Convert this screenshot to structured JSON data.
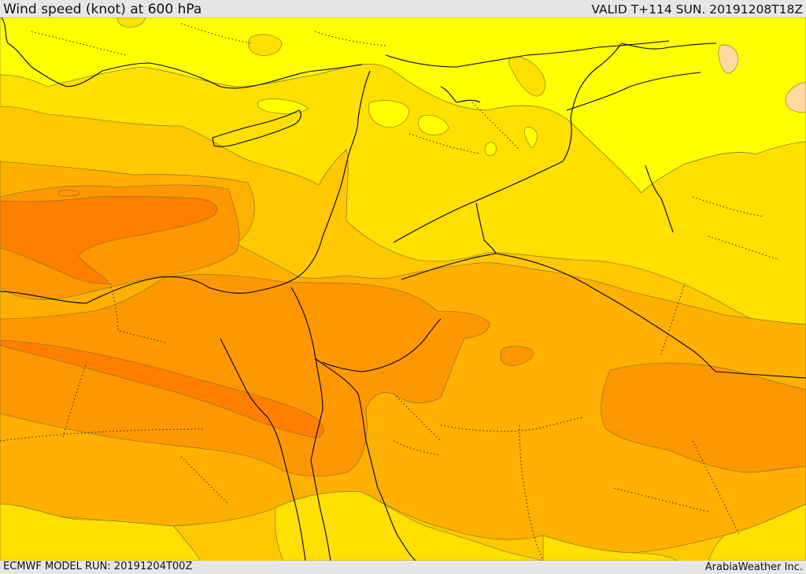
{
  "header": {
    "title": "Wind speed (knot) at 600 hPa",
    "valid": "VALID T+114 SUN. 20191208T18Z"
  },
  "footer": {
    "model_run": "ECMWF MODEL RUN: 20191204T00Z",
    "credit": "ArabiaWeather Inc."
  },
  "palette": {
    "band_0": "#ffff00",
    "band_1": "#ffe000",
    "band_2": "#ffc800",
    "band_3": "#ffb000",
    "band_4": "#ff9800",
    "band_5": "#ff7f00",
    "band_6": "#ffd9a0",
    "outline": "#000000"
  }
}
